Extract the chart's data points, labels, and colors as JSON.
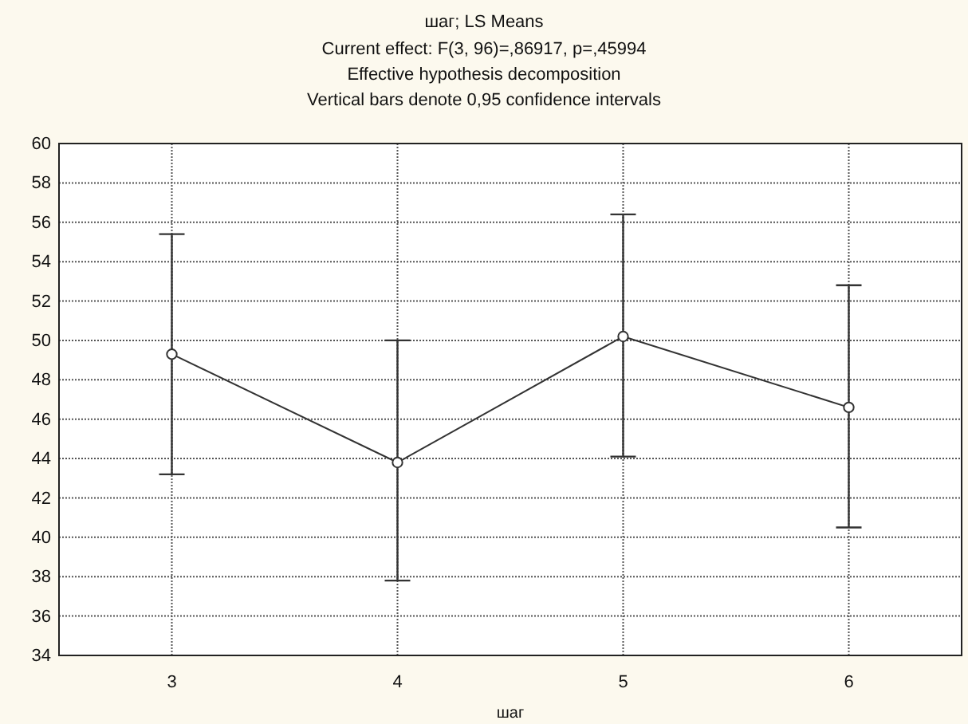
{
  "chart_data": {
    "type": "line",
    "title": "шаг; LS Means",
    "subtitle": "Current effect: F(3, 96)=,86917, p=,45994\nEffective hypothesis decomposition\nVertical bars denote 0,95 confidence intervals",
    "xlabel": "шаг",
    "categories": [
      "3",
      "4",
      "5",
      "6"
    ],
    "series": [
      {
        "color": "#333333",
        "values": [
          49.3,
          43.8,
          50.2,
          46.6
        ],
        "errors": [
          [
            43.2,
            55.4
          ],
          [
            37.8,
            50.0
          ],
          [
            44.1,
            56.4
          ],
          [
            40.5,
            52.8
          ]
        ]
      }
    ],
    "ylim": [
      34,
      60
    ],
    "yticks": [
      34,
      36,
      38,
      40,
      42,
      44,
      46,
      48,
      50,
      52,
      54,
      56,
      58,
      60
    ],
    "grid": true,
    "marker": "circle",
    "line_style": "solid"
  }
}
